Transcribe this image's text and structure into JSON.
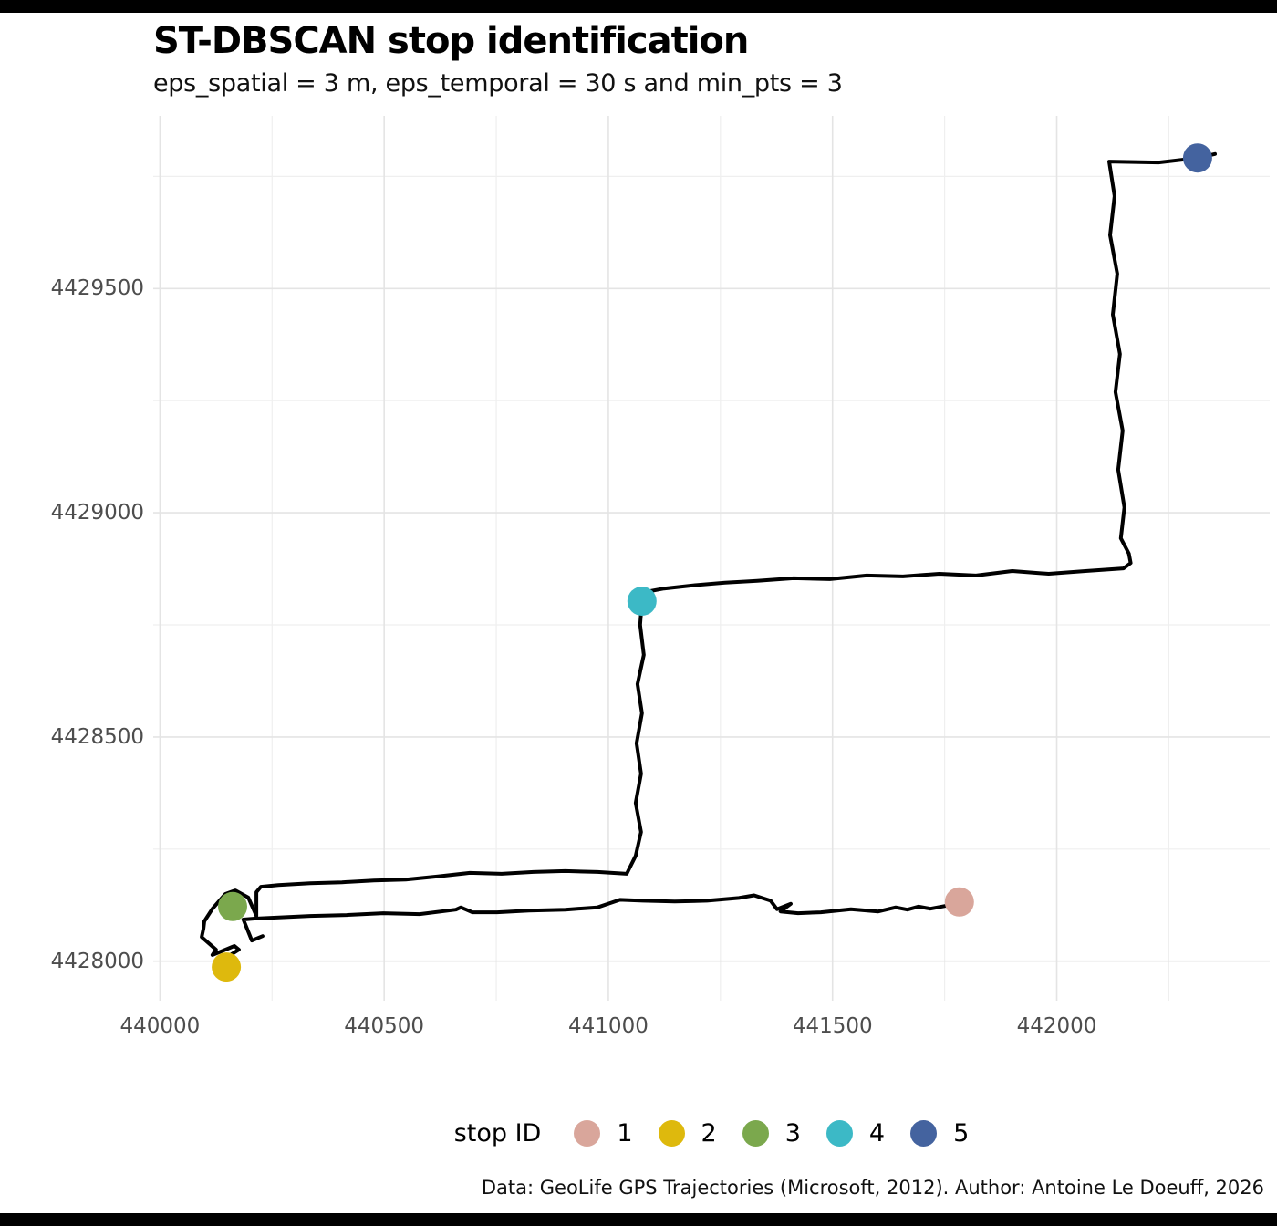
{
  "figure": {
    "title": "ST-DBSCAN stop identification",
    "subtitle": "eps_spatial = 3 m, eps_temporal = 30 s and min_pts = 3",
    "caption": "Data: GeoLife GPS Trajectories (Microsoft, 2012). Author: Antoine Le Doeuff, 2026"
  },
  "legend": {
    "title": "stop ID",
    "items": [
      {
        "label": "1",
        "color": "#D9A69B"
      },
      {
        "label": "2",
        "color": "#DEB90D"
      },
      {
        "label": "3",
        "color": "#7BA84D"
      },
      {
        "label": "4",
        "color": "#3CB9C6"
      },
      {
        "label": "5",
        "color": "#44639F"
      }
    ]
  },
  "chart_data": {
    "type": "line",
    "title": "ST-DBSCAN stop identification",
    "subtitle": "eps_spatial = 3 m, eps_temporal = 30 s and min_pts = 3",
    "caption": "Data: GeoLife GPS Trajectories (Microsoft, 2012). Author: Antoine Le Doeuff, 2026",
    "xlabel": "",
    "ylabel": "",
    "xlim": [
      439985,
      442475
    ],
    "ylim": [
      4427912,
      4429885
    ],
    "aspect": "equal",
    "grid": "major+minor",
    "legend_position": "bottom",
    "legend_title": "stop ID",
    "x_ticks": [
      440000,
      440500,
      441000,
      441500,
      442000
    ],
    "y_ticks": [
      4429500,
      4429000,
      4428500,
      4428000
    ],
    "x_minor_ticks": [
      440250,
      440750,
      441250,
      441750,
      442250
    ],
    "y_minor_ticks": [
      4429750,
      4429250,
      4428750,
      4428250
    ],
    "colors": {
      "trajectory": "#000000",
      "grid_major": "#E4E4E4",
      "grid_minor": "#EFEFEF",
      "tick_label": "#4D4D4D"
    },
    "trajectory_segments": [
      [
        [
          442353,
          4429800
        ],
        [
          442314,
          4429791
        ],
        [
          442227,
          4429781
        ],
        [
          442117,
          4429783
        ],
        [
          442129,
          4429706
        ],
        [
          442119,
          4429619
        ],
        [
          442135,
          4429533
        ],
        [
          442125,
          4429442
        ],
        [
          442141,
          4429354
        ],
        [
          442131,
          4429269
        ],
        [
          442147,
          4429183
        ],
        [
          442137,
          4429096
        ],
        [
          442151,
          4429012
        ],
        [
          442143,
          4428943
        ],
        [
          442161,
          4428909
        ],
        [
          442165,
          4428888
        ],
        [
          442149,
          4428876
        ],
        [
          442064,
          4428870
        ],
        [
          441982,
          4428864
        ],
        [
          441901,
          4428870
        ],
        [
          441820,
          4428860
        ],
        [
          441738,
          4428864
        ],
        [
          441657,
          4428858
        ],
        [
          441576,
          4428860
        ],
        [
          441494,
          4428852
        ],
        [
          441413,
          4428854
        ],
        [
          441332,
          4428848
        ],
        [
          441260,
          4428844
        ],
        [
          441189,
          4428838
        ],
        [
          441124,
          4428831
        ],
        [
          441092,
          4428825
        ],
        [
          441075,
          4428803
        ],
        [
          441071,
          4428750
        ],
        [
          441079,
          4428683
        ],
        [
          441065,
          4428618
        ],
        [
          441075,
          4428553
        ],
        [
          441063,
          4428486
        ],
        [
          441073,
          4428418
        ],
        [
          441061,
          4428353
        ],
        [
          441073,
          4428288
        ],
        [
          441061,
          4428235
        ],
        [
          441047,
          4428207
        ],
        [
          441041,
          4428195
        ],
        [
          440976,
          4428199
        ],
        [
          440904,
          4428201
        ],
        [
          440833,
          4428199
        ],
        [
          440762,
          4428195
        ],
        [
          440691,
          4428197
        ],
        [
          440620,
          4428189
        ],
        [
          440548,
          4428182
        ],
        [
          440477,
          4428180
        ],
        [
          440406,
          4428176
        ],
        [
          440335,
          4428174
        ],
        [
          440264,
          4428170
        ],
        [
          440225,
          4428166
        ],
        [
          440215,
          4428154
        ],
        [
          440215,
          4428101
        ],
        [
          440197,
          4428142
        ],
        [
          440168,
          4428158
        ],
        [
          440146,
          4428150
        ],
        [
          440117,
          4428117
        ],
        [
          440099,
          4428089
        ],
        [
          440097,
          4428073
        ],
        [
          440093,
          4428054
        ],
        [
          440125,
          4428026
        ],
        [
          440117,
          4428014
        ],
        [
          440142,
          4428024
        ],
        [
          440166,
          4428034
        ],
        [
          440176,
          4428026
        ],
        [
          440154,
          4428012
        ]
      ],
      [
        [
          440229,
          4428056
        ],
        [
          440205,
          4428046
        ],
        [
          440186,
          4428093
        ],
        [
          440211,
          4428095
        ],
        [
          440254,
          4428097
        ],
        [
          440335,
          4428101
        ],
        [
          440416,
          4428103
        ],
        [
          440498,
          4428107
        ],
        [
          440579,
          4428105
        ],
        [
          440660,
          4428115
        ],
        [
          440671,
          4428120
        ],
        [
          440697,
          4428109
        ],
        [
          440752,
          4428109
        ],
        [
          440823,
          4428113
        ],
        [
          440904,
          4428115
        ],
        [
          440976,
          4428120
        ],
        [
          441026,
          4428137
        ],
        [
          441077,
          4428135
        ],
        [
          441148,
          4428133
        ],
        [
          441220,
          4428135
        ],
        [
          441291,
          4428141
        ],
        [
          441325,
          4428147
        ],
        [
          441362,
          4428135
        ],
        [
          441376,
          4428116
        ],
        [
          441407,
          4428128
        ],
        [
          441384,
          4428111
        ],
        [
          441423,
          4428107
        ],
        [
          441474,
          4428109
        ],
        [
          441541,
          4428116
        ],
        [
          441602,
          4428111
        ],
        [
          441641,
          4428120
        ],
        [
          441667,
          4428115
        ],
        [
          441692,
          4428122
        ],
        [
          441718,
          4428117
        ],
        [
          441755,
          4428124
        ],
        [
          441783,
          4428132
        ]
      ]
    ],
    "stops": [
      {
        "id": "1",
        "x": 441783,
        "y": 4428132,
        "color": "#D9A69B"
      },
      {
        "id": "2",
        "x": 440148,
        "y": 4427987,
        "color": "#DEB90D"
      },
      {
        "id": "3",
        "x": 440162,
        "y": 4428122,
        "color": "#7BA84D"
      },
      {
        "id": "4",
        "x": 441075,
        "y": 4428803,
        "color": "#3CB9C6"
      },
      {
        "id": "5",
        "x": 442314,
        "y": 4429791,
        "color": "#44639F"
      }
    ]
  }
}
